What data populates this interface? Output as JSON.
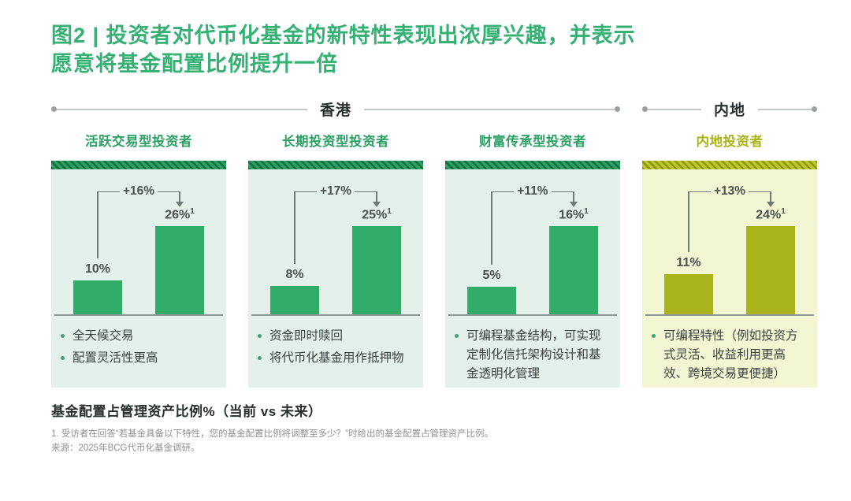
{
  "page": {
    "title_line1": "图2 | 投资者对代币化基金的新特性表现出浓厚兴趣，并表示",
    "title_line2": "愿意将基金配置比例提升一倍"
  },
  "regions": [
    {
      "label": "香港"
    },
    {
      "label": "内地"
    }
  ],
  "chart_data": {
    "type": "bar",
    "title": "投资者对代币化基金的新特性表现出浓厚兴趣，并表示愿意将基金配置比例提升一倍",
    "ylabel": "基金配置占管理资产比例%（当前 vs 未来）",
    "unit": "%",
    "categories": [
      "活跃交易型投资者",
      "长期投资型投资者",
      "财富传承型投资者",
      "内地投资者"
    ],
    "series": [
      {
        "name": "当前",
        "values": [
          10,
          8,
          5,
          11
        ]
      },
      {
        "name": "未来",
        "values": [
          26,
          25,
          16,
          24
        ]
      }
    ],
    "deltas": [
      "+16%",
      "+17%",
      "+11%",
      "+13%"
    ],
    "panels": [
      {
        "region": "香港",
        "title": "活跃交易型投资者",
        "theme": "green",
        "current_value": 10,
        "future_value": 26,
        "current_label": "10%",
        "future_label": "26%",
        "future_footnote_marker": "1",
        "delta_label": "+16%",
        "bullets": [
          "全天候交易",
          "配置灵活性更高"
        ]
      },
      {
        "region": "香港",
        "title": "长期投资型投资者",
        "theme": "green",
        "current_value": 8,
        "future_value": 25,
        "current_label": "8%",
        "future_label": "25%",
        "future_footnote_marker": "1",
        "delta_label": "+17%",
        "bullets": [
          "资金即时赎回",
          "将代币化基金用作抵押物"
        ]
      },
      {
        "region": "香港",
        "title": "财富传承型投资者",
        "theme": "green",
        "current_value": 5,
        "future_value": 16,
        "current_label": "5%",
        "future_label": "16%",
        "future_footnote_marker": "1",
        "delta_label": "+11%",
        "bullets": [
          "可编程基金结构，可实现定制化信托架构设计和基金透明化管理"
        ]
      },
      {
        "region": "内地",
        "title": "内地投资者",
        "theme": "olive",
        "current_value": 11,
        "future_value": 24,
        "current_label": "11%",
        "future_label": "24%",
        "future_footnote_marker": "1",
        "delta_label": "+13%",
        "bullets": [
          "可编程特性（例如投资方式灵活、收益利用更高效、跨境交易更便捷）"
        ]
      }
    ]
  },
  "footer": {
    "axis_note": "基金配置占管理资产比例%（当前 vs 未来）",
    "footnote": "1. 受访者在回答“若基金具备以下特性，您的基金配置比例将调整至多少？”时给出的基金配置占管理资产比例。",
    "source": "来源：2025年BCG代币化基金调研。"
  },
  "colors": {
    "title_green": "#34b173",
    "panel_green_title": "#2ba164",
    "panel_green_bg": "#e4f1ea",
    "panel_green_bar": "#31ad69",
    "panel_olive_title": "#a9b413",
    "panel_olive_bg": "#f3f6d2",
    "panel_olive_bar": "#a9b41d",
    "baseline_gray": "#8f9a98",
    "bracket_gray": "#6f7978"
  }
}
